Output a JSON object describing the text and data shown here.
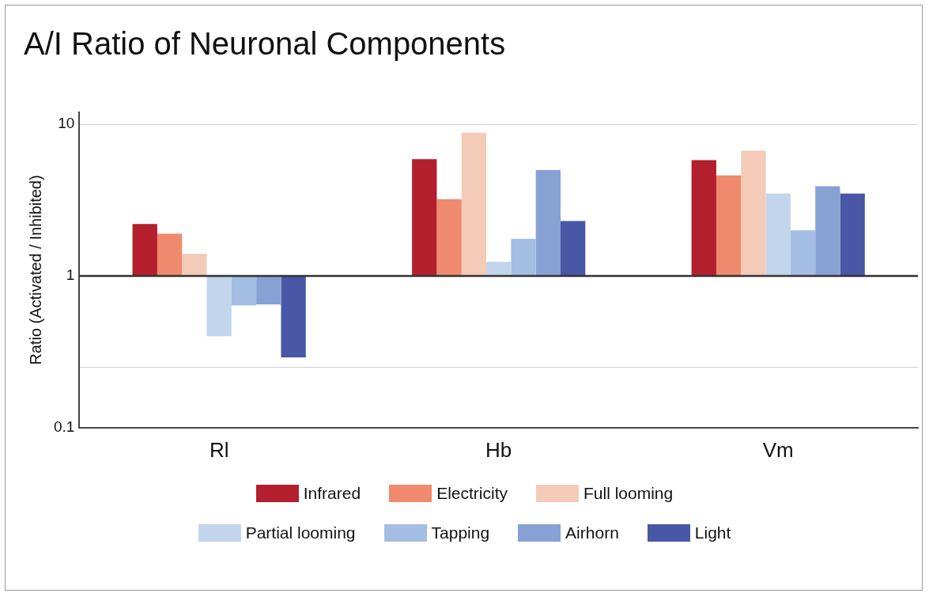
{
  "chart_data": {
    "type": "bar",
    "title": "A/I Ratio of Neuronal Components",
    "ylabel": "Ratio (Activated / Inhibited)",
    "categories": [
      "Rl",
      "Hb",
      "Vm"
    ],
    "series": [
      {
        "name": "Infrared",
        "color": "#b41f2e",
        "values": [
          1.2,
          4.9,
          4.8
        ],
        "base": [
          1,
          1,
          1
        ]
      },
      {
        "name": "Electricity",
        "color": "#ef8a6e",
        "values": [
          0.9,
          2.2,
          3.6
        ],
        "base": [
          1,
          1,
          1
        ]
      },
      {
        "name": "Full looming",
        "color": "#f3cbb8",
        "values": [
          0.4,
          7.8,
          5.7
        ],
        "base": [
          1,
          1,
          1
        ]
      },
      {
        "name": "Partial looming",
        "color": "#c3d5ec",
        "values": [
          -0.6,
          0.24,
          2.5
        ],
        "base": [
          1,
          1,
          1
        ]
      },
      {
        "name": "Tapping",
        "color": "#a4bde2",
        "values": [
          -0.36,
          0.76,
          1.0
        ],
        "base": [
          1,
          1,
          1
        ]
      },
      {
        "name": "Airhorn",
        "color": "#87a1d4",
        "values": [
          -0.35,
          4.0,
          2.9
        ],
        "base": [
          1,
          1,
          1
        ]
      },
      {
        "name": "Light",
        "color": "#4857a6",
        "values": [
          -0.71,
          1.3,
          2.5
        ],
        "base": [
          1,
          1,
          1
        ]
      }
    ],
    "log": "y",
    "ylim": [
      0.1,
      12
    ],
    "yticks": [
      0.1,
      {
        "value": 0.25,
        "label": null
      },
      1,
      10
    ],
    "ref_lines": [
      {
        "axis": "y",
        "value": 1,
        "color": "#333333"
      }
    ],
    "grid": "y",
    "legend": "bottom"
  }
}
